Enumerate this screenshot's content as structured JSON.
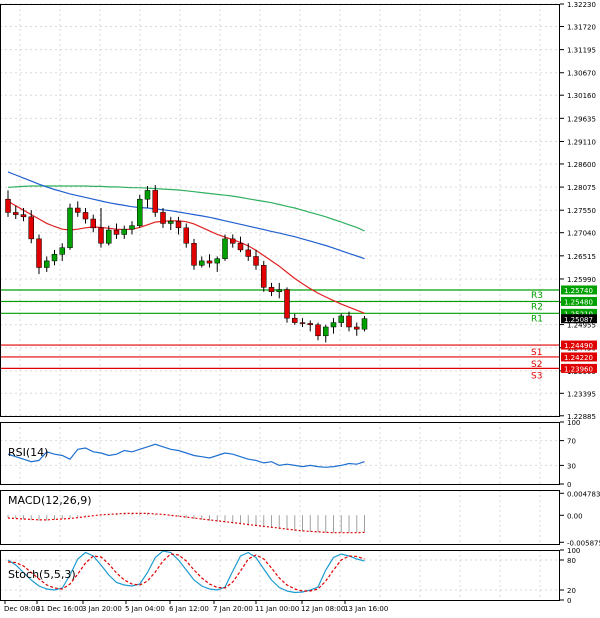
{
  "chart_data": [
    {
      "type": "candlestick",
      "panel": "price",
      "y_axis_ticks": [
        "1.32230",
        "1.31720",
        "1.31195",
        "1.30670",
        "1.30160",
        "1.29635",
        "1.29110",
        "1.28600",
        "1.28075",
        "1.27550",
        "1.27040",
        "1.26515",
        "1.25990",
        "1.25465",
        "1.24955",
        "1.24430",
        "1.23905",
        "1.23395",
        "1.22885"
      ],
      "ylim": [
        1.2288,
        1.3223
      ],
      "price_tags": [
        {
          "label": "1.25740",
          "color": "#00a000",
          "value": 1.2574
        },
        {
          "label": "1.25480",
          "color": "#00a000",
          "value": 1.2548
        },
        {
          "label": "1.25210",
          "color": "#00a000",
          "value": 1.2521
        },
        {
          "label": "1.25087",
          "color": "#000000",
          "value": 1.25087
        },
        {
          "label": "1.24490",
          "color": "#e00000",
          "value": 1.2449
        },
        {
          "label": "1.24220",
          "color": "#e00000",
          "value": 1.2422
        },
        {
          "label": "1.23960",
          "color": "#e00000",
          "value": 1.2396
        }
      ],
      "levels": [
        {
          "name": "R3",
          "value": 1.2574,
          "color": "#00a000"
        },
        {
          "name": "R2",
          "value": 1.2548,
          "color": "#00a000"
        },
        {
          "name": "R1",
          "value": 1.2521,
          "color": "#00a000"
        },
        {
          "name": "S1",
          "value": 1.2449,
          "color": "#e00000"
        },
        {
          "name": "S2",
          "value": 1.2422,
          "color": "#e00000"
        },
        {
          "name": "S3",
          "value": 1.2396,
          "color": "#e00000"
        }
      ],
      "candles": [
        {
          "o": 1.278,
          "h": 1.28,
          "l": 1.274,
          "c": 1.275
        },
        {
          "o": 1.275,
          "h": 1.2765,
          "l": 1.2735,
          "c": 1.2745
        },
        {
          "o": 1.2745,
          "h": 1.276,
          "l": 1.273,
          "c": 1.274
        },
        {
          "o": 1.274,
          "h": 1.2755,
          "l": 1.268,
          "c": 1.269
        },
        {
          "o": 1.269,
          "h": 1.27,
          "l": 1.261,
          "c": 1.2625
        },
        {
          "o": 1.2625,
          "h": 1.265,
          "l": 1.2615,
          "c": 1.264
        },
        {
          "o": 1.264,
          "h": 1.2665,
          "l": 1.263,
          "c": 1.2655
        },
        {
          "o": 1.2655,
          "h": 1.268,
          "l": 1.264,
          "c": 1.267
        },
        {
          "o": 1.267,
          "h": 1.277,
          "l": 1.2665,
          "c": 1.276
        },
        {
          "o": 1.276,
          "h": 1.2775,
          "l": 1.274,
          "c": 1.275
        },
        {
          "o": 1.275,
          "h": 1.276,
          "l": 1.2725,
          "c": 1.2735
        },
        {
          "o": 1.2735,
          "h": 1.2745,
          "l": 1.2705,
          "c": 1.2715
        },
        {
          "o": 1.2715,
          "h": 1.276,
          "l": 1.267,
          "c": 1.268
        },
        {
          "o": 1.268,
          "h": 1.272,
          "l": 1.2675,
          "c": 1.271
        },
        {
          "o": 1.271,
          "h": 1.2725,
          "l": 1.269,
          "c": 1.27
        },
        {
          "o": 1.27,
          "h": 1.272,
          "l": 1.269,
          "c": 1.2712
        },
        {
          "o": 1.2712,
          "h": 1.273,
          "l": 1.27,
          "c": 1.272
        },
        {
          "o": 1.272,
          "h": 1.279,
          "l": 1.2715,
          "c": 1.278
        },
        {
          "o": 1.278,
          "h": 1.281,
          "l": 1.276,
          "c": 1.28
        },
        {
          "o": 1.28,
          "h": 1.2812,
          "l": 1.274,
          "c": 1.275
        },
        {
          "o": 1.275,
          "h": 1.276,
          "l": 1.2715,
          "c": 1.2725
        },
        {
          "o": 1.2725,
          "h": 1.274,
          "l": 1.271,
          "c": 1.273
        },
        {
          "o": 1.273,
          "h": 1.274,
          "l": 1.27,
          "c": 1.2715
        },
        {
          "o": 1.2715,
          "h": 1.2725,
          "l": 1.267,
          "c": 1.268
        },
        {
          "o": 1.268,
          "h": 1.269,
          "l": 1.262,
          "c": 1.263
        },
        {
          "o": 1.263,
          "h": 1.265,
          "l": 1.2625,
          "c": 1.264
        },
        {
          "o": 1.264,
          "h": 1.2655,
          "l": 1.2625,
          "c": 1.2635
        },
        {
          "o": 1.2635,
          "h": 1.265,
          "l": 1.2615,
          "c": 1.2645
        },
        {
          "o": 1.2645,
          "h": 1.27,
          "l": 1.264,
          "c": 1.269
        },
        {
          "o": 1.269,
          "h": 1.27,
          "l": 1.267,
          "c": 1.268
        },
        {
          "o": 1.268,
          "h": 1.2695,
          "l": 1.266,
          "c": 1.2665
        },
        {
          "o": 1.2665,
          "h": 1.268,
          "l": 1.264,
          "c": 1.265
        },
        {
          "o": 1.265,
          "h": 1.2665,
          "l": 1.262,
          "c": 1.263
        },
        {
          "o": 1.263,
          "h": 1.264,
          "l": 1.257,
          "c": 1.258
        },
        {
          "o": 1.258,
          "h": 1.259,
          "l": 1.256,
          "c": 1.257
        },
        {
          "o": 1.257,
          "h": 1.259,
          "l": 1.2555,
          "c": 1.2575
        },
        {
          "o": 1.2575,
          "h": 1.258,
          "l": 1.25,
          "c": 1.251
        },
        {
          "o": 1.251,
          "h": 1.252,
          "l": 1.2495,
          "c": 1.25
        },
        {
          "o": 1.25,
          "h": 1.251,
          "l": 1.249,
          "c": 1.2498
        },
        {
          "o": 1.2498,
          "h": 1.2505,
          "l": 1.248,
          "c": 1.2495
        },
        {
          "o": 1.2495,
          "h": 1.25,
          "l": 1.246,
          "c": 1.247
        },
        {
          "o": 1.247,
          "h": 1.2495,
          "l": 1.2455,
          "c": 1.249
        },
        {
          "o": 1.249,
          "h": 1.251,
          "l": 1.2475,
          "c": 1.25
        },
        {
          "o": 1.25,
          "h": 1.252,
          "l": 1.249,
          "c": 1.2515
        },
        {
          "o": 1.2515,
          "h": 1.2525,
          "l": 1.248,
          "c": 1.249
        },
        {
          "o": 1.249,
          "h": 1.25,
          "l": 1.247,
          "c": 1.2485
        },
        {
          "o": 1.2485,
          "h": 1.2515,
          "l": 1.248,
          "c": 1.2509
        }
      ],
      "ma_red": [
        1.2775,
        1.2765,
        1.2755,
        1.2745,
        1.2735,
        1.2725,
        1.2718,
        1.2712,
        1.271,
        1.2712,
        1.2715,
        1.2717,
        1.2716,
        1.2714,
        1.2712,
        1.2711,
        1.2712,
        1.2716,
        1.2722,
        1.2728,
        1.273,
        1.2731,
        1.2731,
        1.2729,
        1.2724,
        1.2716,
        1.2708,
        1.27,
        1.2694,
        1.2688,
        1.2682,
        1.2674,
        1.2664,
        1.2652,
        1.264,
        1.2628,
        1.2614,
        1.26,
        1.2588,
        1.2577,
        1.2567,
        1.2558,
        1.255,
        1.2542,
        1.2535,
        1.2528,
        1.2521
      ],
      "ma_blue": [
        1.2842,
        1.2835,
        1.2828,
        1.2821,
        1.2814,
        1.2808,
        1.2802,
        1.2797,
        1.2792,
        1.2788,
        1.2784,
        1.278,
        1.2776,
        1.2772,
        1.2769,
        1.2766,
        1.2763,
        1.2761,
        1.276,
        1.2758,
        1.2756,
        1.2754,
        1.2751,
        1.2748,
        1.2745,
        1.2742,
        1.2739,
        1.2735,
        1.2731,
        1.2727,
        1.2723,
        1.2719,
        1.2715,
        1.2711,
        1.2707,
        1.2703,
        1.2699,
        1.2695,
        1.269,
        1.2685,
        1.268,
        1.2675,
        1.2669,
        1.2663,
        1.2657,
        1.2651,
        1.2645
      ],
      "ma_green": [
        1.2807,
        1.2808,
        1.2809,
        1.281,
        1.281,
        1.281,
        1.281,
        1.281,
        1.281,
        1.281,
        1.281,
        1.2809,
        1.2809,
        1.2808,
        1.2808,
        1.2807,
        1.2806,
        1.2806,
        1.2805,
        1.2804,
        1.2803,
        1.2802,
        1.2801,
        1.2799,
        1.2797,
        1.2795,
        1.2793,
        1.2791,
        1.2789,
        1.2787,
        1.2784,
        1.2781,
        1.2778,
        1.2775,
        1.2772,
        1.2768,
        1.2764,
        1.276,
        1.2755,
        1.275,
        1.2745,
        1.274,
        1.2734,
        1.2728,
        1.2722,
        1.2716,
        1.2708
      ]
    },
    {
      "type": "line",
      "panel": "rsi",
      "label": "RSI(14)",
      "y_axis_ticks": [
        "100",
        "70",
        "30",
        "0"
      ],
      "ylim": [
        0,
        100
      ],
      "color": "#1e70d0",
      "values": [
        48,
        44,
        40,
        36,
        38,
        52,
        48,
        46,
        40,
        56,
        58,
        52,
        50,
        46,
        48,
        54,
        52,
        56,
        60,
        64,
        60,
        56,
        54,
        50,
        46,
        44,
        42,
        46,
        50,
        48,
        44,
        40,
        38,
        34,
        36,
        30,
        32,
        30,
        28,
        30,
        28,
        27,
        28,
        30,
        33,
        32,
        36
      ]
    },
    {
      "type": "histogram",
      "panel": "macd",
      "label": "MACD(12,26,9)",
      "y_axis_ticks": [
        "0.004783",
        "0.00",
        "-0.005875"
      ],
      "ylim": [
        -0.00625,
        0.0055
      ],
      "signal_color": "#e00000",
      "histogram": [
        -0.0005,
        -0.0007,
        -0.0009,
        -0.0011,
        -0.0012,
        -0.0012,
        -0.001,
        -0.0008,
        -0.0006,
        -0.0004,
        -0.0002,
        0.0,
        0.0002,
        0.0003,
        0.0004,
        0.0005,
        0.0006,
        0.0006,
        0.0005,
        0.0003,
        0.0001,
        -0.0001,
        -0.0003,
        -0.0005,
        -0.0008,
        -0.001,
        -0.0012,
        -0.0014,
        -0.0016,
        -0.0018,
        -0.002,
        -0.0022,
        -0.0024,
        -0.0026,
        -0.0028,
        -0.003,
        -0.0032,
        -0.0034,
        -0.0035,
        -0.0036,
        -0.0037,
        -0.0038,
        -0.0038,
        -0.0038,
        -0.0038,
        -0.0037,
        -0.0036
      ],
      "signal": [
        -0.0006,
        -0.0007,
        -0.0008,
        -0.0009,
        -0.001,
        -0.001,
        -0.0009,
        -0.0008,
        -0.0007,
        -0.0005,
        -0.0003,
        -0.0001,
        0.0001,
        0.0002,
        0.0003,
        0.0004,
        0.0004,
        0.0004,
        0.0004,
        0.0003,
        0.0002,
        0.0,
        -0.0002,
        -0.0004,
        -0.0006,
        -0.0008,
        -0.001,
        -0.0012,
        -0.0014,
        -0.0016,
        -0.0018,
        -0.002,
        -0.0022,
        -0.0024,
        -0.0026,
        -0.0028,
        -0.003,
        -0.0032,
        -0.0034,
        -0.0035,
        -0.0036,
        -0.0037,
        -0.0038,
        -0.0038,
        -0.0038,
        -0.0038,
        -0.0037
      ]
    },
    {
      "type": "line",
      "panel": "stoch",
      "label": "Stoch(5,5,3)",
      "y_axis_ticks": [
        "100",
        "80",
        "20",
        "0"
      ],
      "ylim": [
        0,
        100
      ],
      "k_color": "#1e9bd0",
      "d_color": "#e00000",
      "k": [
        80,
        70,
        55,
        40,
        28,
        22,
        20,
        24,
        50,
        82,
        95,
        88,
        70,
        50,
        35,
        30,
        28,
        32,
        55,
        85,
        98,
        95,
        80,
        60,
        40,
        28,
        22,
        20,
        26,
        58,
        88,
        95,
        85,
        62,
        40,
        25,
        18,
        15,
        16,
        20,
        26,
        60,
        85,
        92,
        88,
        82,
        78
      ],
      "d": [
        76,
        75,
        68,
        55,
        42,
        30,
        24,
        22,
        32,
        52,
        74,
        88,
        86,
        72,
        54,
        40,
        32,
        30,
        38,
        56,
        78,
        92,
        90,
        78,
        60,
        44,
        32,
        25,
        24,
        36,
        58,
        82,
        90,
        82,
        64,
        44,
        30,
        22,
        18,
        18,
        22,
        38,
        60,
        80,
        88,
        87,
        82
      ]
    }
  ],
  "x_axis_labels": [
    "Dec 08:00",
    "31 Dec 16:00",
    "3 Jan 20:00",
    "5 Jan 04:00",
    "6 Jan 12:00",
    "7 Jan 20:00",
    "11 Jan 00:00",
    "12 Jan 08:00",
    "13 Jan 16:00"
  ],
  "colors": {
    "grid": "#d9d9d9",
    "axis": "#000000",
    "bull": "#00a000",
    "bear": "#e00000",
    "ma_red": "#e02020",
    "ma_blue": "#2060d0",
    "ma_green": "#30b060"
  }
}
